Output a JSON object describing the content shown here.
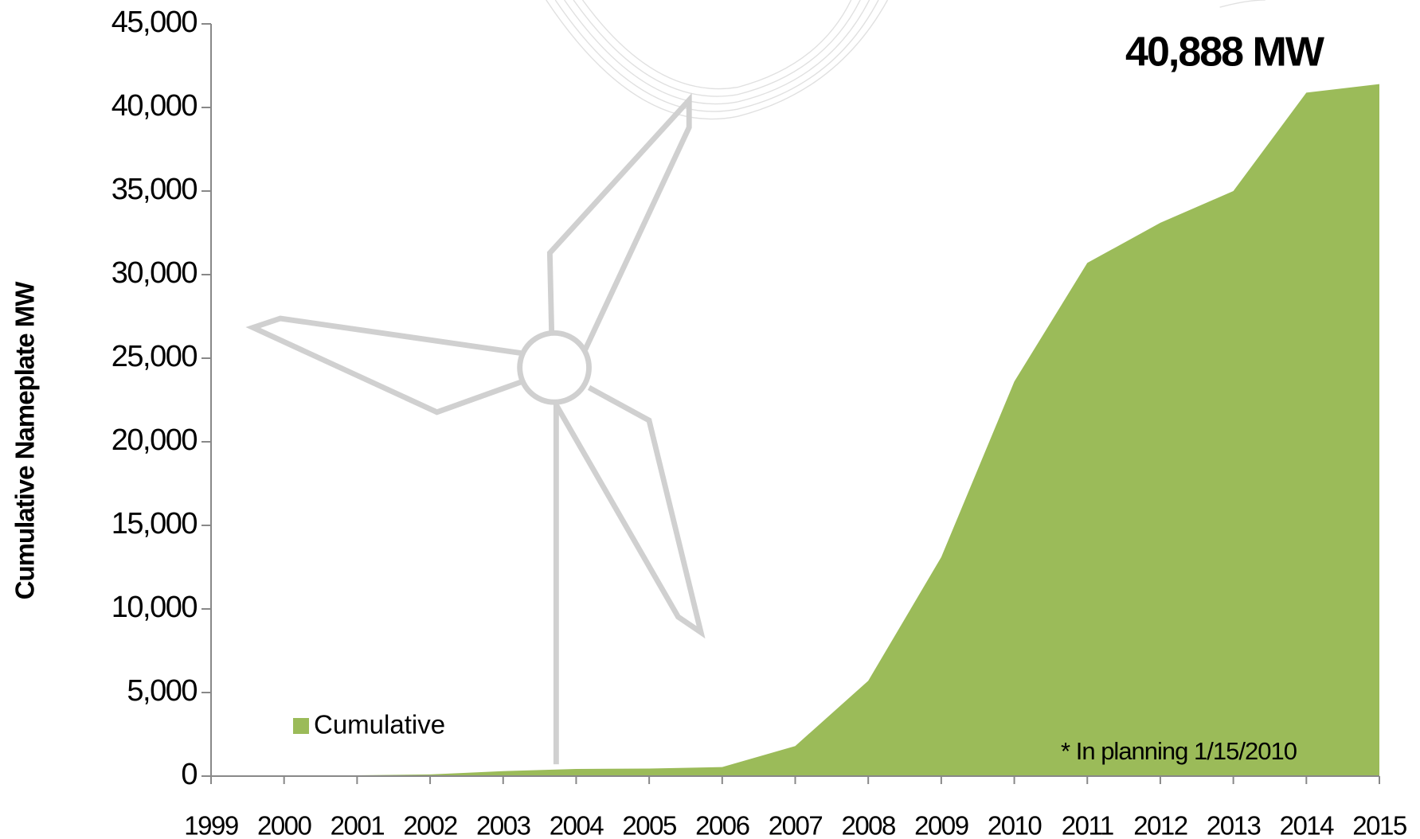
{
  "chart_data": {
    "type": "area",
    "y_label": "Cumulative Nameplate MW",
    "categories": [
      "1999",
      "2000",
      "2001",
      "2002",
      "2003",
      "2004",
      "2005",
      "2006",
      "2007",
      "2008",
      "2009",
      "2010",
      "2011",
      "2012",
      "2013",
      "2014",
      "2015"
    ],
    "series": [
      {
        "name": "Cumulative",
        "color": "#9bbb59",
        "values": [
          0,
          0,
          50,
          100,
          300,
          430,
          450,
          540,
          1800,
          5700,
          13100,
          23600,
          30700,
          33100,
          35000,
          40888,
          41400
        ]
      }
    ],
    "ylim": [
      0,
      45000
    ],
    "yticks": [
      0,
      {
        "value": 5000,
        "label": "5,000"
      },
      {
        "value": 10000,
        "label": "10,000"
      },
      {
        "value": 15000,
        "label": "15,000"
      },
      {
        "value": 20000,
        "label": "20,000"
      },
      {
        "value": 25000,
        "label": "25,000"
      },
      {
        "value": 30000,
        "label": "30,000"
      },
      {
        "value": 35000,
        "label": "35,000"
      },
      {
        "value": 40000,
        "label": "40,000"
      },
      {
        "value": 45000,
        "label": "45,000"
      }
    ],
    "annotations": [
      "40,888 MW",
      "* In planning 1/15/2010"
    ]
  }
}
